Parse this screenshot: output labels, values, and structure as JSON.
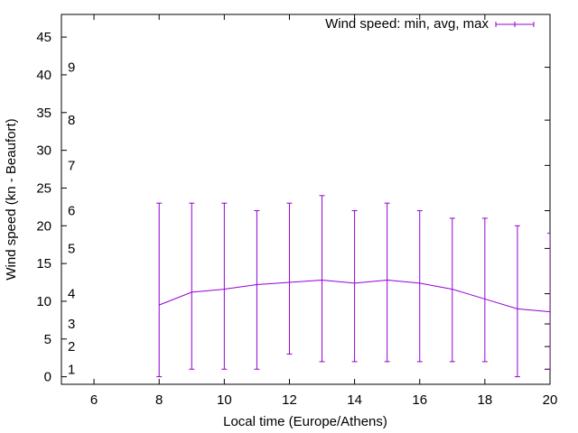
{
  "chart_data": {
    "type": "line",
    "title": "",
    "xlabel": "Local time (Europe/Athens)",
    "ylabel": "Wind speed (kn - Beaufort)",
    "xlim": [
      5,
      20
    ],
    "ylim": [
      -1,
      48
    ],
    "x_ticks": [
      6,
      8,
      10,
      12,
      14,
      16,
      18,
      20
    ],
    "y_ticks": [
      0,
      5,
      10,
      15,
      20,
      25,
      30,
      35,
      40,
      45
    ],
    "grid": false,
    "legend_position": "top-right",
    "beaufort_scale": [
      {
        "label": "1",
        "knots": 1
      },
      {
        "label": "2",
        "knots": 4
      },
      {
        "label": "3",
        "knots": 7
      },
      {
        "label": "4",
        "knots": 11
      },
      {
        "label": "5",
        "knots": 17
      },
      {
        "label": "6",
        "knots": 22
      },
      {
        "label": "7",
        "knots": 28
      },
      {
        "label": "8",
        "knots": 34
      },
      {
        "label": "9",
        "knots": 41
      }
    ],
    "series": [
      {
        "name": "Wind speed: min, avg, max",
        "color": "#9400d3",
        "x": [
          8,
          9,
          10,
          11,
          12,
          13,
          14,
          15,
          16,
          17,
          18,
          19,
          20
        ],
        "avg": [
          9.5,
          11.2,
          11.6,
          12.2,
          12.5,
          12.8,
          12.4,
          12.8,
          12.4,
          11.6,
          10.3,
          9.0,
          8.6
        ],
        "min": [
          0,
          1,
          1,
          1,
          3,
          2,
          2,
          2,
          2,
          2,
          2,
          0,
          1
        ],
        "max": [
          23,
          23,
          23,
          22,
          23,
          24,
          22,
          23,
          22,
          21,
          21,
          20,
          19
        ]
      }
    ]
  }
}
